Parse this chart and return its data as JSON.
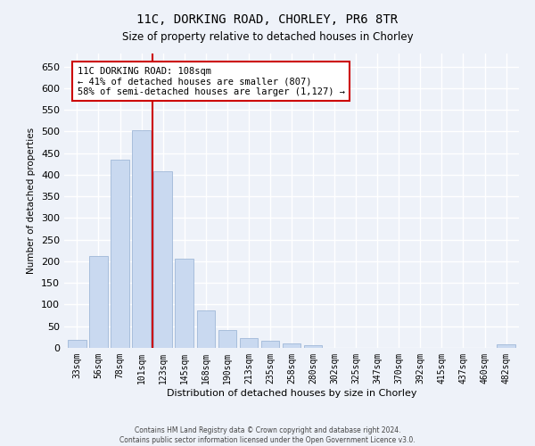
{
  "title": "11C, DORKING ROAD, CHORLEY, PR6 8TR",
  "subtitle": "Size of property relative to detached houses in Chorley",
  "xlabel": "Distribution of detached houses by size in Chorley",
  "ylabel": "Number of detached properties",
  "categories": [
    "33sqm",
    "56sqm",
    "78sqm",
    "101sqm",
    "123sqm",
    "145sqm",
    "168sqm",
    "190sqm",
    "213sqm",
    "235sqm",
    "258sqm",
    "280sqm",
    "302sqm",
    "325sqm",
    "347sqm",
    "370sqm",
    "392sqm",
    "415sqm",
    "437sqm",
    "460sqm",
    "482sqm"
  ],
  "values": [
    18,
    213,
    435,
    502,
    407,
    207,
    87,
    42,
    22,
    17,
    10,
    7,
    0,
    0,
    0,
    0,
    0,
    0,
    0,
    0,
    8
  ],
  "bar_color": "#c9d9f0",
  "bar_edge_color": "#a0b8d8",
  "annotation_text": "11C DORKING ROAD: 108sqm\n← 41% of detached houses are smaller (807)\n58% of semi-detached houses are larger (1,127) →",
  "annotation_box_color": "#ffffff",
  "annotation_box_edge_color": "#cc0000",
  "vline_color": "#cc0000",
  "vline_x_index": 3.5,
  "ylim": [
    0,
    680
  ],
  "yticks": [
    0,
    50,
    100,
    150,
    200,
    250,
    300,
    350,
    400,
    450,
    500,
    550,
    600,
    650
  ],
  "bg_color": "#eef2f9",
  "grid_color": "#ffffff",
  "footer_line1": "Contains HM Land Registry data © Crown copyright and database right 2024.",
  "footer_line2": "Contains public sector information licensed under the Open Government Licence v3.0."
}
